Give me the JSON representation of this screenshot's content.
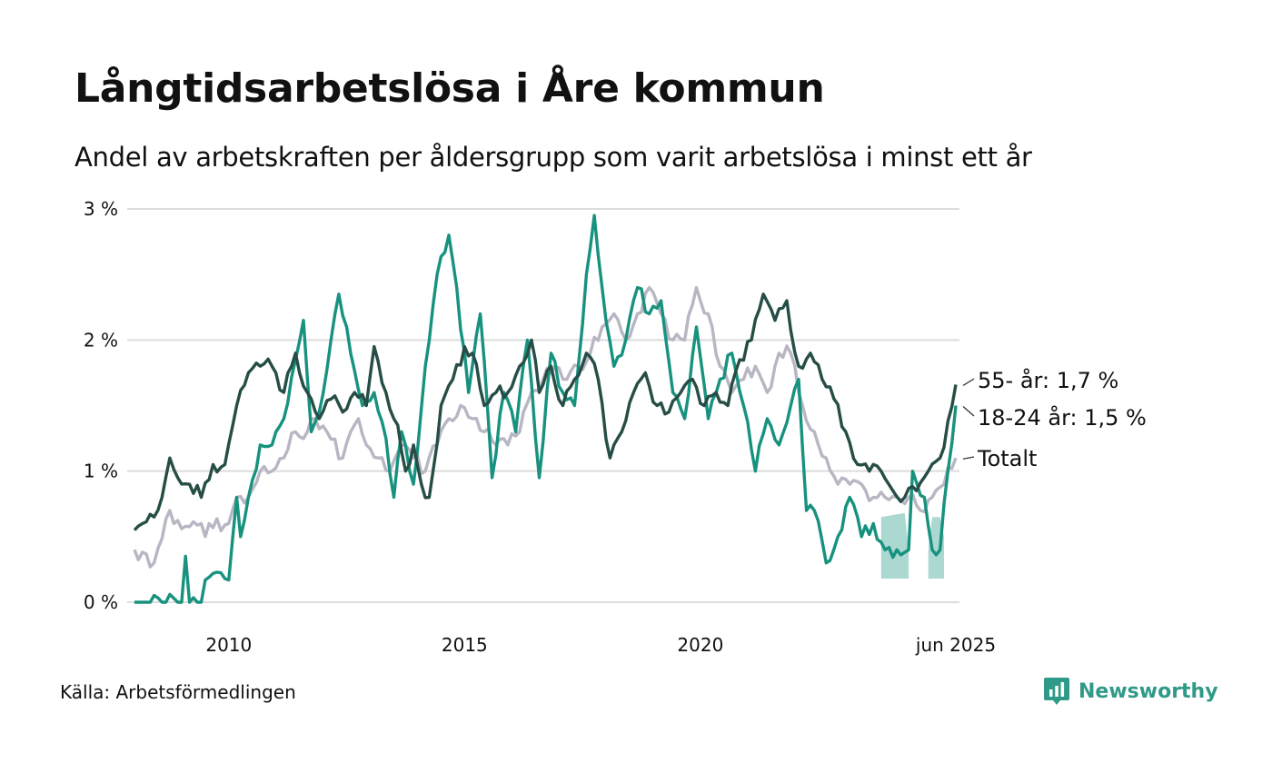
{
  "title": "Långtidsarbetslösa i Åre kommun",
  "subtitle": "Andel av arbetskraften per åldersgrupp som varit arbetslösa i minst ett år",
  "source": "Källa: Arbetsförmedlingen",
  "brand": {
    "name": "Newsworthy",
    "icon": "newsworthy-logo-icon",
    "color": "#2f9a88"
  },
  "chart_data": {
    "type": "line",
    "x_start": "2008-01",
    "x_end": "2025-06",
    "x_step": "month",
    "ylim": [
      0,
      3
    ],
    "yticks": [
      0,
      1,
      2,
      3
    ],
    "ytick_labels": [
      "0 %",
      "1 %",
      "2 %",
      "3 %"
    ],
    "xticks": [
      "2010",
      "2015",
      "2020",
      "jun 2025"
    ],
    "grid": "horizontal",
    "legend": "direct labels at line ends",
    "series": [
      {
        "name": "Totalt",
        "end_label": "Totalt",
        "color": "#b8b6c3",
        "anchors": [
          [
            "2008-01",
            0.4
          ],
          [
            "2008-06",
            0.3
          ],
          [
            "2008-10",
            0.7
          ],
          [
            "2008-11",
            0.6
          ],
          [
            "2009-06",
            0.6
          ],
          [
            "2009-07",
            0.5
          ],
          [
            "2009-08",
            0.6
          ],
          [
            "2010-01",
            0.6
          ],
          [
            "2010-03",
            0.8
          ],
          [
            "2010-06",
            0.8
          ],
          [
            "2010-09",
            1.0
          ],
          [
            "2010-12",
            1.0
          ],
          [
            "2011-03",
            1.1
          ],
          [
            "2011-06",
            1.3
          ],
          [
            "2011-09",
            1.3
          ],
          [
            "2011-11",
            1.4
          ],
          [
            "2012-02",
            1.3
          ],
          [
            "2012-06",
            1.1
          ],
          [
            "2012-08",
            1.3
          ],
          [
            "2012-10",
            1.4
          ],
          [
            "2012-12",
            1.2
          ],
          [
            "2013-03",
            1.1
          ],
          [
            "2013-06",
            1.0
          ],
          [
            "2013-09",
            1.2
          ],
          [
            "2013-12",
            1.1
          ],
          [
            "2014-03",
            1.0
          ],
          [
            "2014-06",
            1.2
          ],
          [
            "2014-09",
            1.4
          ],
          [
            "2014-12",
            1.5
          ],
          [
            "2015-03",
            1.4
          ],
          [
            "2015-06",
            1.3
          ],
          [
            "2015-09",
            1.2
          ],
          [
            "2015-12",
            1.2
          ],
          [
            "2016-03",
            1.3
          ],
          [
            "2016-06",
            1.6
          ],
          [
            "2016-09",
            1.7
          ],
          [
            "2016-12",
            1.8
          ],
          [
            "2017-03",
            1.7
          ],
          [
            "2017-06",
            1.8
          ],
          [
            "2017-09",
            1.9
          ],
          [
            "2017-12",
            2.1
          ],
          [
            "2018-03",
            2.2
          ],
          [
            "2018-06",
            2.0
          ],
          [
            "2018-09",
            2.2
          ],
          [
            "2018-12",
            2.4
          ],
          [
            "2019-03",
            2.2
          ],
          [
            "2019-06",
            2.0
          ],
          [
            "2019-09",
            2.0
          ],
          [
            "2019-12",
            2.4
          ],
          [
            "2020-03",
            2.2
          ],
          [
            "2020-06",
            1.8
          ],
          [
            "2020-09",
            1.6
          ],
          [
            "2020-12",
            1.7
          ],
          [
            "2021-03",
            1.8
          ],
          [
            "2021-06",
            1.6
          ],
          [
            "2021-09",
            1.9
          ],
          [
            "2021-12",
            1.9
          ],
          [
            "2022-03",
            1.5
          ],
          [
            "2022-06",
            1.3
          ],
          [
            "2022-09",
            1.1
          ],
          [
            "2022-12",
            0.9
          ],
          [
            "2023-03",
            0.9
          ],
          [
            "2023-06",
            0.9
          ],
          [
            "2023-09",
            0.8
          ],
          [
            "2023-12",
            0.8
          ],
          [
            "2024-03",
            0.8
          ],
          [
            "2024-06",
            0.8
          ],
          [
            "2024-09",
            0.7
          ],
          [
            "2024-12",
            0.8
          ],
          [
            "2025-03",
            0.9
          ],
          [
            "2025-06",
            1.1
          ]
        ]
      },
      {
        "name": "18-24 år",
        "end_label": "18-24 år: 1,5 %",
        "color": "#17927f",
        "band_color": "#a6d6cf",
        "anchors": [
          [
            "2008-01",
            0.0
          ],
          [
            "2009-01",
            0.0
          ],
          [
            "2009-02",
            0.35
          ],
          [
            "2009-03",
            0.0
          ],
          [
            "2009-06",
            0.0
          ],
          [
            "2009-07",
            0.17
          ],
          [
            "2010-01",
            0.17
          ],
          [
            "2010-03",
            0.8
          ],
          [
            "2010-04",
            0.5
          ],
          [
            "2010-06",
            0.8
          ],
          [
            "2010-09",
            1.2
          ],
          [
            "2010-12",
            1.2
          ],
          [
            "2011-03",
            1.4
          ],
          [
            "2011-06",
            1.85
          ],
          [
            "2011-08",
            2.15
          ],
          [
            "2011-10",
            1.3
          ],
          [
            "2011-12",
            1.45
          ],
          [
            "2012-03",
            2.0
          ],
          [
            "2012-05",
            2.35
          ],
          [
            "2012-08",
            1.9
          ],
          [
            "2012-11",
            1.5
          ],
          [
            "2013-02",
            1.6
          ],
          [
            "2013-05",
            1.25
          ],
          [
            "2013-07",
            0.8
          ],
          [
            "2013-09",
            1.3
          ],
          [
            "2013-12",
            0.9
          ],
          [
            "2014-03",
            1.8
          ],
          [
            "2014-06",
            2.5
          ],
          [
            "2014-09",
            2.8
          ],
          [
            "2014-11",
            2.4
          ],
          [
            "2015-02",
            1.6
          ],
          [
            "2015-05",
            2.2
          ],
          [
            "2015-08",
            0.95
          ],
          [
            "2015-11",
            1.6
          ],
          [
            "2016-02",
            1.3
          ],
          [
            "2016-05",
            2.0
          ],
          [
            "2016-08",
            0.95
          ],
          [
            "2016-11",
            1.9
          ],
          [
            "2017-02",
            1.6
          ],
          [
            "2017-05",
            1.5
          ],
          [
            "2017-08",
            2.5
          ],
          [
            "2017-10",
            2.95
          ],
          [
            "2017-12",
            2.4
          ],
          [
            "2018-03",
            1.8
          ],
          [
            "2018-06",
            2.0
          ],
          [
            "2018-09",
            2.4
          ],
          [
            "2018-12",
            2.2
          ],
          [
            "2019-03",
            2.3
          ],
          [
            "2019-06",
            1.6
          ],
          [
            "2019-09",
            1.4
          ],
          [
            "2019-12",
            2.1
          ],
          [
            "2020-03",
            1.4
          ],
          [
            "2020-06",
            1.7
          ],
          [
            "2020-09",
            1.9
          ],
          [
            "2020-12",
            1.5
          ],
          [
            "2021-03",
            1.0
          ],
          [
            "2021-06",
            1.4
          ],
          [
            "2021-09",
            1.2
          ],
          [
            "2021-12",
            1.5
          ],
          [
            "2022-02",
            1.7
          ],
          [
            "2022-04",
            0.7
          ],
          [
            "2022-06",
            0.7
          ],
          [
            "2022-09",
            0.3
          ],
          [
            "2022-12",
            0.5
          ],
          [
            "2023-03",
            0.8
          ],
          [
            "2023-06",
            0.5
          ],
          [
            "2023-09",
            0.6
          ],
          [
            "2023-12",
            0.4
          ],
          [
            "2024-03",
            0.4
          ],
          [
            "2024-06",
            0.4
          ],
          [
            "2024-07",
            1.0
          ],
          [
            "2024-10",
            0.8
          ],
          [
            "2024-12",
            0.4
          ],
          [
            "2025-02",
            0.4
          ],
          [
            "2025-04",
            1.0
          ],
          [
            "2025-06",
            1.5
          ]
        ],
        "uncertainty_bands": [
          [
            [
              "2023-11",
              0.18,
              0.65
            ],
            [
              "2024-01",
              0.18,
              0.66
            ],
            [
              "2024-03",
              0.18,
              0.67
            ],
            [
              "2024-05",
              0.18,
              0.68
            ],
            [
              "2024-06",
              0.18,
              0.4
            ]
          ],
          [
            [
              "2024-11",
              0.18,
              0.4
            ],
            [
              "2024-12",
              0.18,
              0.65
            ],
            [
              "2025-02",
              0.18,
              0.65
            ],
            [
              "2025-03",
              0.18,
              0.5
            ]
          ]
        ]
      },
      {
        "name": "55- år",
        "end_label": "55- år: 1,7 %",
        "color": "#264d46",
        "anchors": [
          [
            "2008-01",
            0.55
          ],
          [
            "2008-03",
            0.6
          ],
          [
            "2008-06",
            0.65
          ],
          [
            "2008-08",
            0.8
          ],
          [
            "2008-10",
            1.1
          ],
          [
            "2008-12",
            0.95
          ],
          [
            "2009-03",
            0.9
          ],
          [
            "2009-06",
            0.8
          ],
          [
            "2009-09",
            1.05
          ],
          [
            "2009-12",
            1.05
          ],
          [
            "2010-03",
            1.5
          ],
          [
            "2010-06",
            1.75
          ],
          [
            "2010-09",
            1.8
          ],
          [
            "2010-12",
            1.8
          ],
          [
            "2011-03",
            1.6
          ],
          [
            "2011-06",
            1.9
          ],
          [
            "2011-09",
            1.6
          ],
          [
            "2011-12",
            1.4
          ],
          [
            "2012-03",
            1.55
          ],
          [
            "2012-06",
            1.45
          ],
          [
            "2012-09",
            1.6
          ],
          [
            "2012-12",
            1.5
          ],
          [
            "2013-02",
            1.95
          ],
          [
            "2013-05",
            1.6
          ],
          [
            "2013-08",
            1.35
          ],
          [
            "2013-10",
            1.0
          ],
          [
            "2013-12",
            1.2
          ],
          [
            "2014-02",
            0.9
          ],
          [
            "2014-04",
            0.8
          ],
          [
            "2014-07",
            1.5
          ],
          [
            "2014-10",
            1.7
          ],
          [
            "2015-01",
            1.95
          ],
          [
            "2015-03",
            1.9
          ],
          [
            "2015-06",
            1.5
          ],
          [
            "2015-09",
            1.6
          ],
          [
            "2015-12",
            1.6
          ],
          [
            "2016-03",
            1.8
          ],
          [
            "2016-06",
            2.0
          ],
          [
            "2016-08",
            1.6
          ],
          [
            "2016-11",
            1.8
          ],
          [
            "2017-02",
            1.5
          ],
          [
            "2017-05",
            1.7
          ],
          [
            "2017-08",
            1.9
          ],
          [
            "2017-11",
            1.7
          ],
          [
            "2018-02",
            1.1
          ],
          [
            "2018-05",
            1.3
          ],
          [
            "2018-08",
            1.6
          ],
          [
            "2018-11",
            1.75
          ],
          [
            "2019-02",
            1.5
          ],
          [
            "2019-05",
            1.45
          ],
          [
            "2019-08",
            1.6
          ],
          [
            "2019-11",
            1.7
          ],
          [
            "2020-02",
            1.5
          ],
          [
            "2020-05",
            1.6
          ],
          [
            "2020-08",
            1.5
          ],
          [
            "2020-11",
            1.85
          ],
          [
            "2021-02",
            2.0
          ],
          [
            "2021-05",
            2.35
          ],
          [
            "2021-08",
            2.15
          ],
          [
            "2021-11",
            2.3
          ],
          [
            "2022-02",
            1.8
          ],
          [
            "2022-05",
            1.9
          ],
          [
            "2022-08",
            1.7
          ],
          [
            "2022-11",
            1.55
          ],
          [
            "2023-02",
            1.3
          ],
          [
            "2023-05",
            1.05
          ],
          [
            "2023-08",
            1.0
          ],
          [
            "2023-11",
            1.0
          ],
          [
            "2024-02",
            0.85
          ],
          [
            "2024-05",
            0.8
          ],
          [
            "2024-08",
            0.85
          ],
          [
            "2024-11",
            1.0
          ],
          [
            "2025-02",
            1.1
          ],
          [
            "2025-06",
            1.66
          ]
        ]
      }
    ]
  }
}
